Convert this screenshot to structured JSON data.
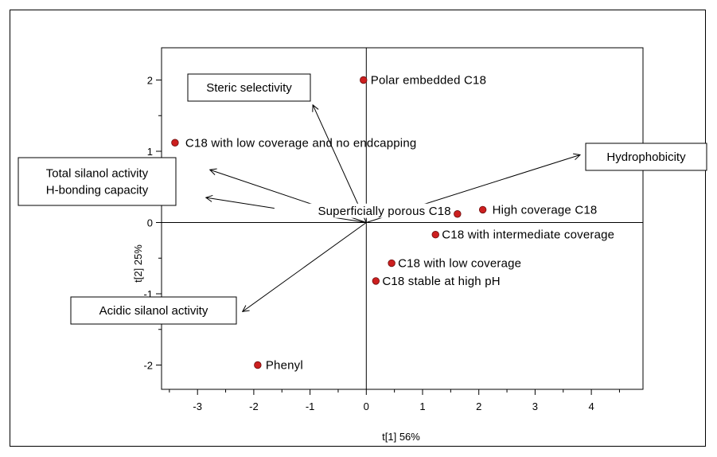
{
  "chart_data": {
    "type": "scatter",
    "xlabel": "t[1] 56%",
    "ylabel": "t[2] 25%",
    "xlim": [
      -3.5,
      4.95
    ],
    "ylim": [
      -2.4,
      2.45
    ],
    "xticks": [
      -3,
      -2,
      -1,
      0,
      1,
      2,
      3,
      4
    ],
    "yticks": [
      -2,
      -1,
      0,
      1,
      2
    ],
    "point_color": "#cc1f1f",
    "points": [
      {
        "label": "Polar embedded C18",
        "x": -0.05,
        "y": 2.0
      },
      {
        "label": "C18 with low coverage and no endcapping",
        "x": -3.4,
        "y": 1.12
      },
      {
        "label": "Superficially porous C18",
        "x": 1.62,
        "y": 0.12
      },
      {
        "label": "High coverage C18",
        "x": 2.07,
        "y": 0.18
      },
      {
        "label": "C18 with intermediate coverage",
        "x": 1.23,
        "y": -0.17
      },
      {
        "label": "C18 with low coverage",
        "x": 0.45,
        "y": -0.57
      },
      {
        "label": "C18 stable at high pH",
        "x": 0.17,
        "y": -0.82
      },
      {
        "label": "Phenyl",
        "x": -1.93,
        "y": -2.0
      }
    ],
    "vectors": [
      {
        "label": [
          "Steric selectivity"
        ],
        "x": -0.95,
        "y": 1.65
      },
      {
        "label": [
          "Hydrophobicity"
        ],
        "x": 3.8,
        "y": 0.95
      },
      {
        "label": [
          "Total silanol activity",
          "H-bonding capacity"
        ],
        "x": -2.78,
        "y": 0.74
      },
      {
        "label": [],
        "x": -2.85,
        "y": 0.35
      },
      {
        "label": [
          "Acidic silanol activity"
        ],
        "x": -2.2,
        "y": -1.25
      }
    ]
  }
}
